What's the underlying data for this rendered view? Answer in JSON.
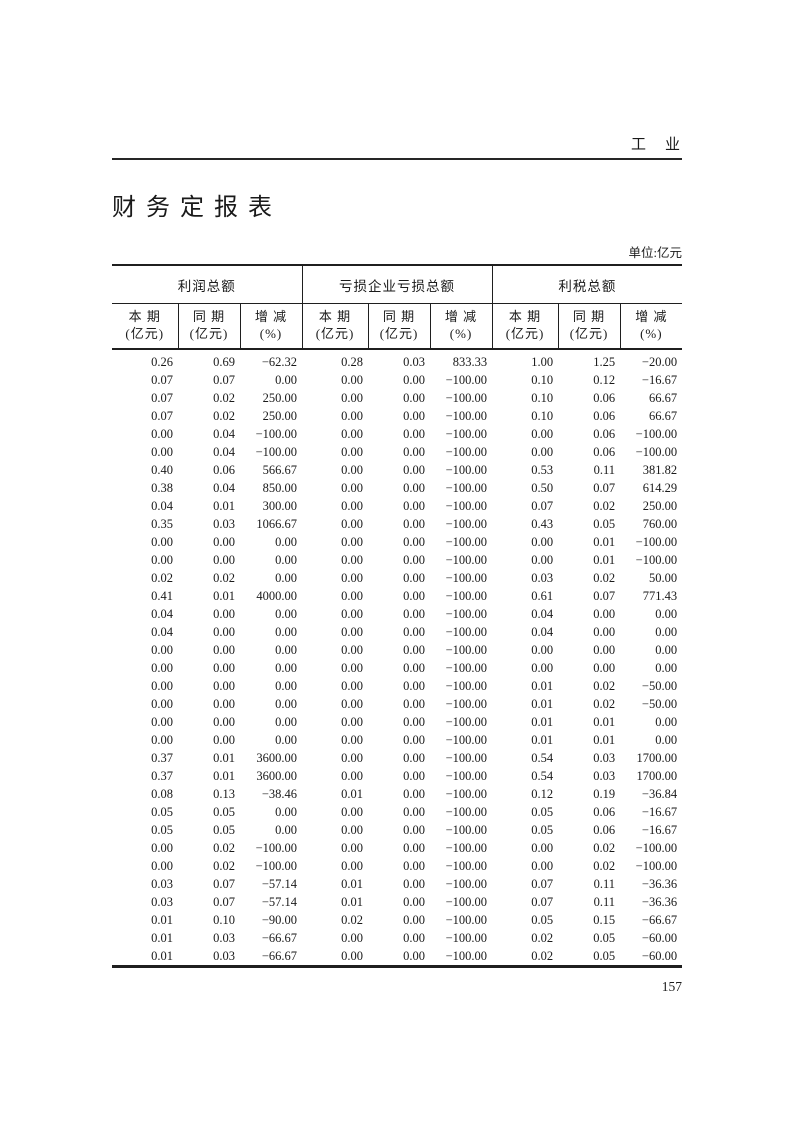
{
  "page": {
    "running_head": "工　业",
    "title": "财 务 定 报 表",
    "unit_label": "单位:亿元",
    "page_number": "157"
  },
  "table": {
    "group_headers": [
      "利润总额",
      "亏损企业亏损总额",
      "利税总额"
    ],
    "column_headers": [
      {
        "line1": "本 期",
        "line2": "(亿元)"
      },
      {
        "line1": "同 期",
        "line2": "(亿元)"
      },
      {
        "line1": "增 减",
        "line2": "(%)"
      },
      {
        "line1": "本 期",
        "line2": "(亿元)"
      },
      {
        "line1": "同 期",
        "line2": "(亿元)"
      },
      {
        "line1": "增 减",
        "line2": "(%)"
      },
      {
        "line1": "本 期",
        "line2": "(亿元)"
      },
      {
        "line1": "同 期",
        "line2": "(亿元)"
      },
      {
        "line1": "增 减",
        "line2": "(%)"
      }
    ],
    "rows": [
      [
        "0.26",
        "0.69",
        "−62.32",
        "0.28",
        "0.03",
        "833.33",
        "1.00",
        "1.25",
        "−20.00"
      ],
      [
        "0.07",
        "0.07",
        "0.00",
        "0.00",
        "0.00",
        "−100.00",
        "0.10",
        "0.12",
        "−16.67"
      ],
      [
        "0.07",
        "0.02",
        "250.00",
        "0.00",
        "0.00",
        "−100.00",
        "0.10",
        "0.06",
        "66.67"
      ],
      [
        "0.07",
        "0.02",
        "250.00",
        "0.00",
        "0.00",
        "−100.00",
        "0.10",
        "0.06",
        "66.67"
      ],
      [
        "0.00",
        "0.04",
        "−100.00",
        "0.00",
        "0.00",
        "−100.00",
        "0.00",
        "0.06",
        "−100.00"
      ],
      [
        "0.00",
        "0.04",
        "−100.00",
        "0.00",
        "0.00",
        "−100.00",
        "0.00",
        "0.06",
        "−100.00"
      ],
      [
        "0.40",
        "0.06",
        "566.67",
        "0.00",
        "0.00",
        "−100.00",
        "0.53",
        "0.11",
        "381.82"
      ],
      [
        "0.38",
        "0.04",
        "850.00",
        "0.00",
        "0.00",
        "−100.00",
        "0.50",
        "0.07",
        "614.29"
      ],
      [
        "0.04",
        "0.01",
        "300.00",
        "0.00",
        "0.00",
        "−100.00",
        "0.07",
        "0.02",
        "250.00"
      ],
      [
        "0.35",
        "0.03",
        "1066.67",
        "0.00",
        "0.00",
        "−100.00",
        "0.43",
        "0.05",
        "760.00"
      ],
      [
        "0.00",
        "0.00",
        "0.00",
        "0.00",
        "0.00",
        "−100.00",
        "0.00",
        "0.01",
        "−100.00"
      ],
      [
        "0.00",
        "0.00",
        "0.00",
        "0.00",
        "0.00",
        "−100.00",
        "0.00",
        "0.01",
        "−100.00"
      ],
      [
        "0.02",
        "0.02",
        "0.00",
        "0.00",
        "0.00",
        "−100.00",
        "0.03",
        "0.02",
        "50.00"
      ],
      [
        "0.41",
        "0.01",
        "4000.00",
        "0.00",
        "0.00",
        "−100.00",
        "0.61",
        "0.07",
        "771.43"
      ],
      [
        "0.04",
        "0.00",
        "0.00",
        "0.00",
        "0.00",
        "−100.00",
        "0.04",
        "0.00",
        "0.00"
      ],
      [
        "0.04",
        "0.00",
        "0.00",
        "0.00",
        "0.00",
        "−100.00",
        "0.04",
        "0.00",
        "0.00"
      ],
      [
        "0.00",
        "0.00",
        "0.00",
        "0.00",
        "0.00",
        "−100.00",
        "0.00",
        "0.00",
        "0.00"
      ],
      [
        "0.00",
        "0.00",
        "0.00",
        "0.00",
        "0.00",
        "−100.00",
        "0.00",
        "0.00",
        "0.00"
      ],
      [
        "0.00",
        "0.00",
        "0.00",
        "0.00",
        "0.00",
        "−100.00",
        "0.01",
        "0.02",
        "−50.00"
      ],
      [
        "0.00",
        "0.00",
        "0.00",
        "0.00",
        "0.00",
        "−100.00",
        "0.01",
        "0.02",
        "−50.00"
      ],
      [
        "0.00",
        "0.00",
        "0.00",
        "0.00",
        "0.00",
        "−100.00",
        "0.01",
        "0.01",
        "0.00"
      ],
      [
        "0.00",
        "0.00",
        "0.00",
        "0.00",
        "0.00",
        "−100.00",
        "0.01",
        "0.01",
        "0.00"
      ],
      [
        "0.37",
        "0.01",
        "3600.00",
        "0.00",
        "0.00",
        "−100.00",
        "0.54",
        "0.03",
        "1700.00"
      ],
      [
        "0.37",
        "0.01",
        "3600.00",
        "0.00",
        "0.00",
        "−100.00",
        "0.54",
        "0.03",
        "1700.00"
      ],
      [
        "0.08",
        "0.13",
        "−38.46",
        "0.01",
        "0.00",
        "−100.00",
        "0.12",
        "0.19",
        "−36.84"
      ],
      [
        "0.05",
        "0.05",
        "0.00",
        "0.00",
        "0.00",
        "−100.00",
        "0.05",
        "0.06",
        "−16.67"
      ],
      [
        "0.05",
        "0.05",
        "0.00",
        "0.00",
        "0.00",
        "−100.00",
        "0.05",
        "0.06",
        "−16.67"
      ],
      [
        "0.00",
        "0.02",
        "−100.00",
        "0.00",
        "0.00",
        "−100.00",
        "0.00",
        "0.02",
        "−100.00"
      ],
      [
        "0.00",
        "0.02",
        "−100.00",
        "0.00",
        "0.00",
        "−100.00",
        "0.00",
        "0.02",
        "−100.00"
      ],
      [
        "0.03",
        "0.07",
        "−57.14",
        "0.01",
        "0.00",
        "−100.00",
        "0.07",
        "0.11",
        "−36.36"
      ],
      [
        "0.03",
        "0.07",
        "−57.14",
        "0.01",
        "0.00",
        "−100.00",
        "0.07",
        "0.11",
        "−36.36"
      ],
      [
        "0.01",
        "0.10",
        "−90.00",
        "0.02",
        "0.00",
        "−100.00",
        "0.05",
        "0.15",
        "−66.67"
      ],
      [
        "0.01",
        "0.03",
        "−66.67",
        "0.00",
        "0.00",
        "−100.00",
        "0.02",
        "0.05",
        "−60.00"
      ],
      [
        "0.01",
        "0.03",
        "−66.67",
        "0.00",
        "0.00",
        "−100.00",
        "0.02",
        "0.05",
        "−60.00"
      ]
    ]
  }
}
